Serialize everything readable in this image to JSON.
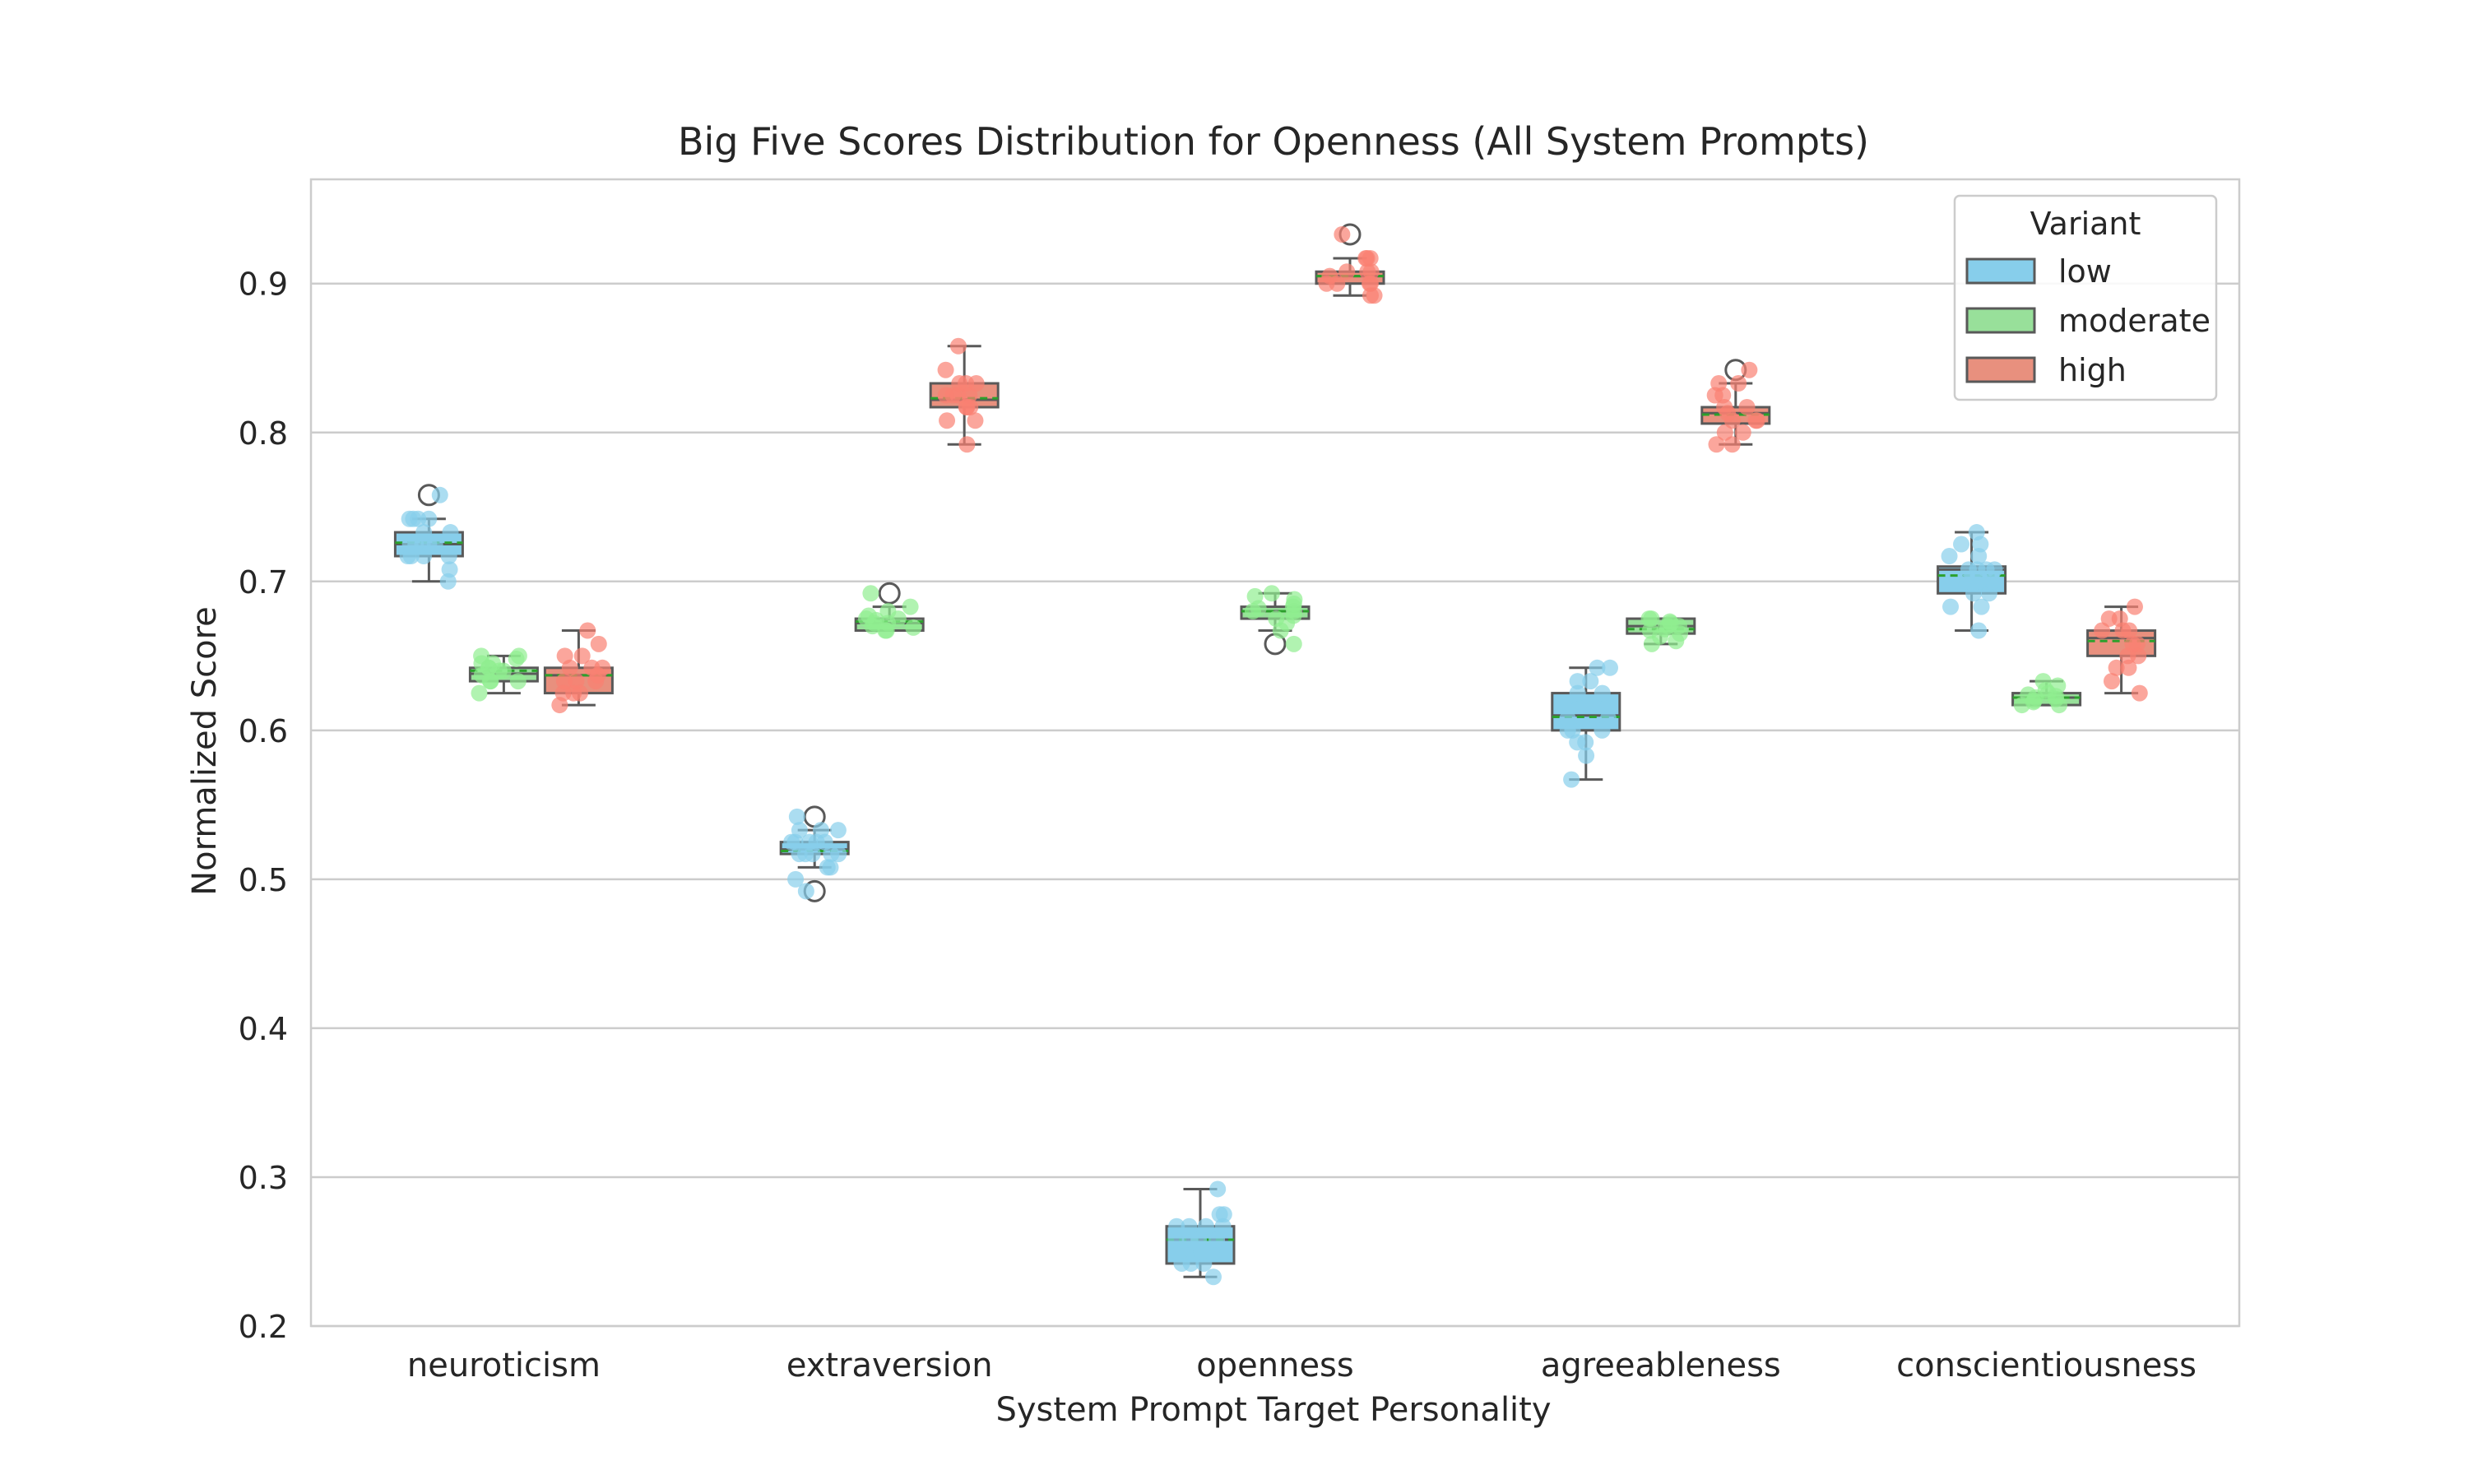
{
  "chart_data": {
    "type": "box",
    "title": "Big Five Scores Distribution for Openness (All System Prompts)",
    "xlabel": "System Prompt Target Personality",
    "ylabel": "Normalized Score",
    "ylim": [
      0.2,
      0.97
    ],
    "yticks": [
      "0.2",
      "0.3",
      "0.4",
      "0.5",
      "0.6",
      "0.7",
      "0.8",
      "0.9"
    ],
    "grid": true,
    "legend": {
      "title": "Variant",
      "placement": "top-right"
    },
    "categories": [
      "neuroticism",
      "extraversion",
      "openness",
      "agreeableness",
      "conscientiousness"
    ],
    "series": [
      {
        "name": "low",
        "color": "#87CEEB",
        "point_color": "#87CEEB",
        "boxes": [
          {
            "q1": 0.717,
            "median": 0.725,
            "mean": 0.726,
            "q3": 0.733,
            "whislo": 0.7,
            "whishi": 0.742,
            "fliers": [
              0.758
            ],
            "points": [
              0.7,
              0.708,
              0.717,
              0.717,
              0.717,
              0.717,
              0.725,
              0.725,
              0.725,
              0.725,
              0.725,
              0.733,
              0.733,
              0.742,
              0.742,
              0.742,
              0.742,
              0.758
            ]
          },
          {
            "q1": 0.517,
            "median": 0.52,
            "mean": 0.519,
            "q3": 0.525,
            "whislo": 0.508,
            "whishi": 0.533,
            "fliers": [
              0.492,
              0.542
            ],
            "points": [
              0.492,
              0.5,
              0.508,
              0.508,
              0.517,
              0.517,
              0.517,
              0.517,
              0.517,
              0.525,
              0.525,
              0.525,
              0.525,
              0.525,
              0.533,
              0.533,
              0.533,
              0.542
            ]
          },
          {
            "q1": 0.242,
            "median": 0.258,
            "mean": 0.258,
            "q3": 0.267,
            "whislo": 0.233,
            "whishi": 0.292,
            "fliers": [],
            "points": [
              0.233,
              0.242,
              0.242,
              0.242,
              0.25,
              0.25,
              0.258,
              0.258,
              0.258,
              0.258,
              0.267,
              0.267,
              0.267,
              0.267,
              0.275,
              0.275,
              0.292
            ]
          },
          {
            "q1": 0.6,
            "median": 0.61,
            "mean": 0.609,
            "q3": 0.625,
            "whislo": 0.567,
            "whishi": 0.642,
            "fliers": [],
            "points": [
              0.567,
              0.583,
              0.592,
              0.592,
              0.6,
              0.6,
              0.6,
              0.608,
              0.608,
              0.617,
              0.617,
              0.617,
              0.625,
              0.625,
              0.633,
              0.633,
              0.642,
              0.642
            ]
          },
          {
            "q1": 0.692,
            "median": 0.708,
            "mean": 0.704,
            "q3": 0.71,
            "whislo": 0.667,
            "whishi": 0.733,
            "fliers": [],
            "points": [
              0.667,
              0.683,
              0.683,
              0.692,
              0.692,
              0.7,
              0.7,
              0.7,
              0.708,
              0.708,
              0.708,
              0.708,
              0.717,
              0.717,
              0.725,
              0.725,
              0.733
            ]
          }
        ]
      },
      {
        "name": "moderate",
        "color": "#98E09A",
        "point_color": "#90EE90",
        "boxes": [
          {
            "q1": 0.633,
            "median": 0.638,
            "mean": 0.64,
            "q3": 0.642,
            "whislo": 0.625,
            "whishi": 0.65,
            "fliers": [],
            "points": [
              0.625,
              0.633,
              0.633,
              0.633,
              0.637,
              0.64,
              0.64,
              0.642,
              0.642,
              0.645,
              0.645,
              0.648,
              0.65,
              0.65
            ]
          },
          {
            "q1": 0.667,
            "median": 0.672,
            "mean": 0.673,
            "q3": 0.675,
            "whislo": 0.667,
            "whishi": 0.683,
            "fliers": [
              0.692
            ],
            "points": [
              0.667,
              0.667,
              0.669,
              0.67,
              0.672,
              0.672,
              0.674,
              0.675,
              0.675,
              0.677,
              0.68,
              0.683,
              0.692
            ]
          },
          {
            "q1": 0.675,
            "median": 0.68,
            "mean": 0.68,
            "q3": 0.683,
            "whislo": 0.667,
            "whishi": 0.692,
            "fliers": [
              0.658
            ],
            "points": [
              0.658,
              0.667,
              0.672,
              0.675,
              0.677,
              0.68,
              0.68,
              0.682,
              0.683,
              0.685,
              0.688,
              0.69,
              0.692
            ]
          },
          {
            "q1": 0.665,
            "median": 0.67,
            "mean": 0.668,
            "q3": 0.675,
            "whislo": 0.658,
            "whishi": 0.675,
            "fliers": [],
            "points": [
              0.658,
              0.66,
              0.663,
              0.665,
              0.667,
              0.668,
              0.67,
              0.67,
              0.672,
              0.673,
              0.675,
              0.675
            ]
          },
          {
            "q1": 0.617,
            "median": 0.622,
            "mean": 0.622,
            "q3": 0.625,
            "whislo": 0.617,
            "whishi": 0.633,
            "fliers": [],
            "points": [
              0.617,
              0.617,
              0.619,
              0.62,
              0.621,
              0.622,
              0.623,
              0.624,
              0.625,
              0.627,
              0.63,
              0.633
            ]
          }
        ]
      },
      {
        "name": "high",
        "color": "#E8907E",
        "point_color": "#FA8072",
        "boxes": [
          {
            "q1": 0.625,
            "median": 0.637,
            "mean": 0.637,
            "q3": 0.642,
            "whislo": 0.617,
            "whishi": 0.667,
            "fliers": [],
            "points": [
              0.617,
              0.625,
              0.625,
              0.625,
              0.633,
              0.633,
              0.633,
              0.637,
              0.642,
              0.642,
              0.642,
              0.65,
              0.65,
              0.658,
              0.667
            ]
          },
          {
            "q1": 0.817,
            "median": 0.822,
            "mean": 0.823,
            "q3": 0.833,
            "whislo": 0.792,
            "whishi": 0.858,
            "fliers": [],
            "points": [
              0.792,
              0.808,
              0.808,
              0.817,
              0.817,
              0.817,
              0.825,
              0.825,
              0.825,
              0.825,
              0.833,
              0.833,
              0.833,
              0.842,
              0.858
            ]
          },
          {
            "q1": 0.9,
            "median": 0.905,
            "mean": 0.905,
            "q3": 0.908,
            "whislo": 0.892,
            "whishi": 0.917,
            "fliers": [
              0.933
            ],
            "points": [
              0.892,
              0.892,
              0.9,
              0.9,
              0.9,
              0.9,
              0.905,
              0.908,
              0.908,
              0.908,
              0.917,
              0.917,
              0.917,
              0.933
            ]
          },
          {
            "q1": 0.806,
            "median": 0.813,
            "mean": 0.812,
            "q3": 0.817,
            "whislo": 0.792,
            "whishi": 0.833,
            "fliers": [
              0.842
            ],
            "points": [
              0.792,
              0.792,
              0.8,
              0.8,
              0.808,
              0.808,
              0.808,
              0.813,
              0.817,
              0.817,
              0.825,
              0.825,
              0.833,
              0.833,
              0.842
            ]
          },
          {
            "q1": 0.65,
            "median": 0.662,
            "mean": 0.66,
            "q3": 0.667,
            "whislo": 0.625,
            "whishi": 0.683,
            "fliers": [],
            "points": [
              0.625,
              0.633,
              0.642,
              0.642,
              0.65,
              0.65,
              0.658,
              0.658,
              0.667,
              0.667,
              0.667,
              0.675,
              0.675,
              0.683
            ]
          }
        ]
      }
    ]
  }
}
